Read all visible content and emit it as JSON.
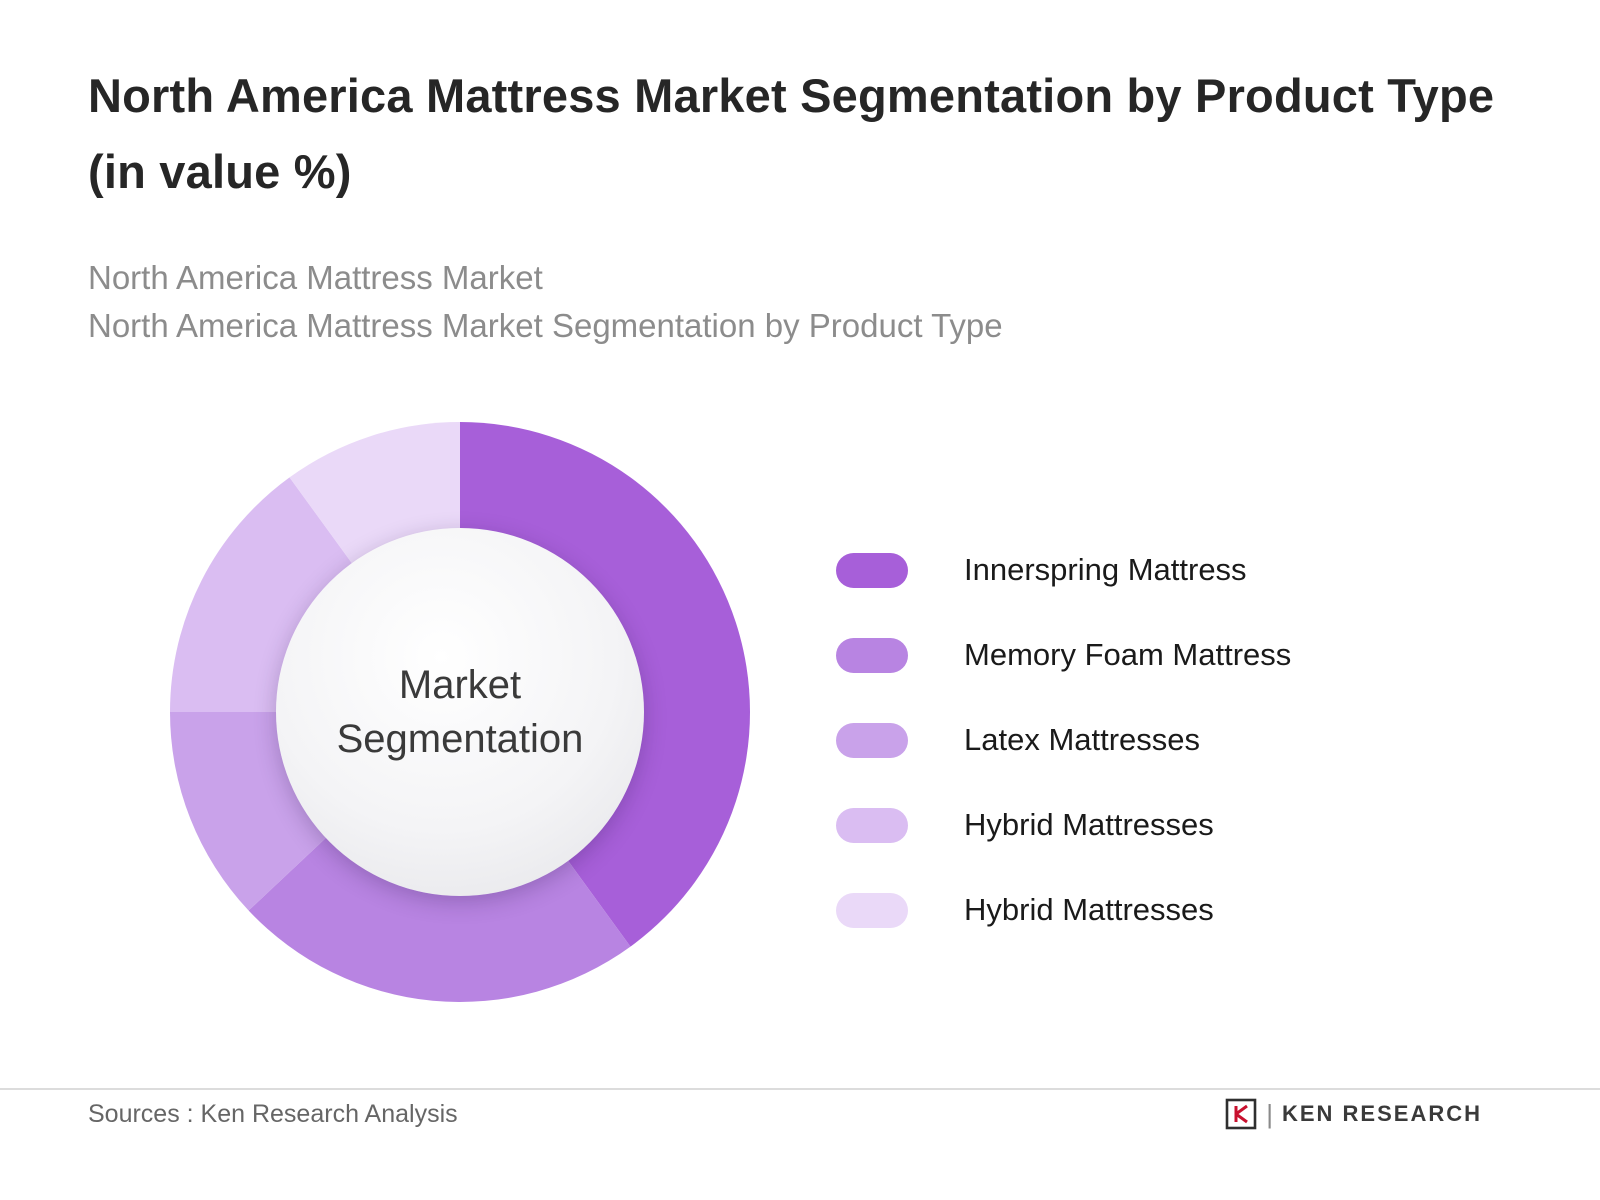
{
  "header": {
    "title": "North America Mattress Market Segmentation by Product Type (in value %)",
    "subtitle_line1": "North America Mattress Market",
    "subtitle_line2": "North America Mattress Market Segmentation by Product Type"
  },
  "chart_data": {
    "type": "pie",
    "variant": "donut",
    "title": "North America Mattress Market Segmentation by Product Type (in value %)",
    "center_label": "Market Segmentation",
    "categories": [
      "Innerspring Mattress",
      "Memory Foam Mattress",
      "Latex Mattresses",
      "Hybrid Mattresses",
      "Hybrid Mattresses"
    ],
    "values": [
      40,
      23,
      12,
      15,
      10
    ],
    "unit": "%",
    "colors": [
      "#a75fd9",
      "#b884e2",
      "#c9a2ea",
      "#dabdf2",
      "#ead9f8"
    ],
    "start_angle_deg": 0,
    "legend_position": "right",
    "data_labels": "none"
  },
  "footer": {
    "source": "Sources : Ken Research Analysis",
    "brand_name": "KEN RESEARCH",
    "brand_separator": "|",
    "brand_accent_color": "#c8102e",
    "brand_dark_color": "#2f2f2f"
  }
}
